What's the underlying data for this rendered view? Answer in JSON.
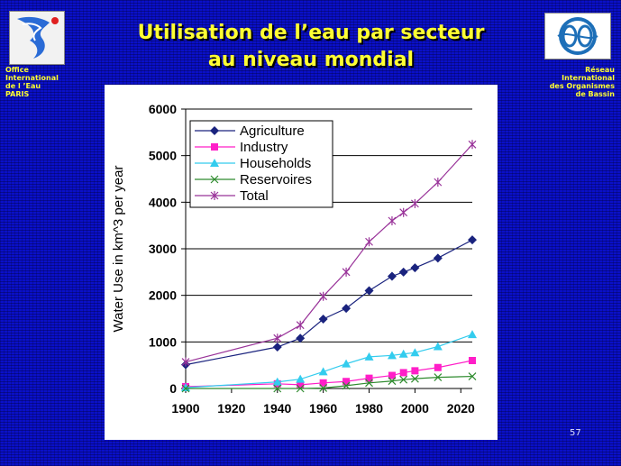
{
  "slide": {
    "title_line1": "Utilisation de l’eau par secteur",
    "title_line2": "au niveau mondial",
    "org_left": [
      "Office",
      "International",
      "de l ’Eau",
      "PARIS"
    ],
    "org_right": [
      "Réseau",
      "International",
      "des Organismes",
      "de Bassin"
    ],
    "page_number": "57",
    "colors": {
      "background": "#0a10c8",
      "title": "#ffff33"
    }
  },
  "chart_data": {
    "type": "line",
    "title": "",
    "xlabel": "",
    "ylabel": "Water Use in km^3 per year",
    "xlim": [
      1900,
      2025
    ],
    "ylim": [
      0,
      6000
    ],
    "x_ticks": [
      1900,
      1920,
      1940,
      1960,
      1980,
      2000,
      2020
    ],
    "y_ticks": [
      0,
      1000,
      2000,
      3000,
      4000,
      5000,
      6000
    ],
    "grid": "horizontal",
    "legend_position": "top-left",
    "series": [
      {
        "name": "Agriculture",
        "color": "#1a237e",
        "marker": "diamond",
        "points": [
          [
            1900,
            510
          ],
          [
            1940,
            890
          ],
          [
            1950,
            1080
          ],
          [
            1960,
            1490
          ],
          [
            1970,
            1720
          ],
          [
            1980,
            2100
          ],
          [
            1990,
            2410
          ],
          [
            1995,
            2500
          ],
          [
            2000,
            2590
          ],
          [
            2010,
            2800
          ],
          [
            2025,
            3190
          ]
        ]
      },
      {
        "name": "Industry",
        "color": "#ff1ec8",
        "marker": "square",
        "points": [
          [
            1900,
            40
          ],
          [
            1940,
            100
          ],
          [
            1950,
            80
          ],
          [
            1960,
            120
          ],
          [
            1970,
            150
          ],
          [
            1980,
            220
          ],
          [
            1990,
            280
          ],
          [
            1995,
            340
          ],
          [
            2000,
            380
          ],
          [
            2010,
            450
          ],
          [
            2025,
            600
          ]
        ]
      },
      {
        "name": "Households",
        "color": "#33ccee",
        "marker": "triangle",
        "points": [
          [
            1900,
            20
          ],
          [
            1940,
            140
          ],
          [
            1950,
            200
          ],
          [
            1960,
            360
          ],
          [
            1970,
            530
          ],
          [
            1980,
            680
          ],
          [
            1990,
            710
          ],
          [
            1995,
            740
          ],
          [
            2000,
            770
          ],
          [
            2010,
            900
          ],
          [
            2025,
            1160
          ]
        ]
      },
      {
        "name": "Reservoires",
        "color": "#2e8b2e",
        "marker": "x",
        "points": [
          [
            1900,
            0
          ],
          [
            1940,
            0
          ],
          [
            1950,
            0
          ],
          [
            1960,
            10
          ],
          [
            1970,
            60
          ],
          [
            1980,
            120
          ],
          [
            1990,
            160
          ],
          [
            1995,
            190
          ],
          [
            2000,
            210
          ],
          [
            2010,
            240
          ],
          [
            2025,
            260
          ]
        ]
      },
      {
        "name": "Total",
        "color": "#993399",
        "marker": "star",
        "points": [
          [
            1900,
            570
          ],
          [
            1940,
            1080
          ],
          [
            1950,
            1360
          ],
          [
            1960,
            1980
          ],
          [
            1970,
            2500
          ],
          [
            1980,
            3150
          ],
          [
            1990,
            3600
          ],
          [
            1995,
            3780
          ],
          [
            2000,
            3970
          ],
          [
            2010,
            4430
          ],
          [
            2025,
            5240
          ]
        ]
      }
    ]
  }
}
